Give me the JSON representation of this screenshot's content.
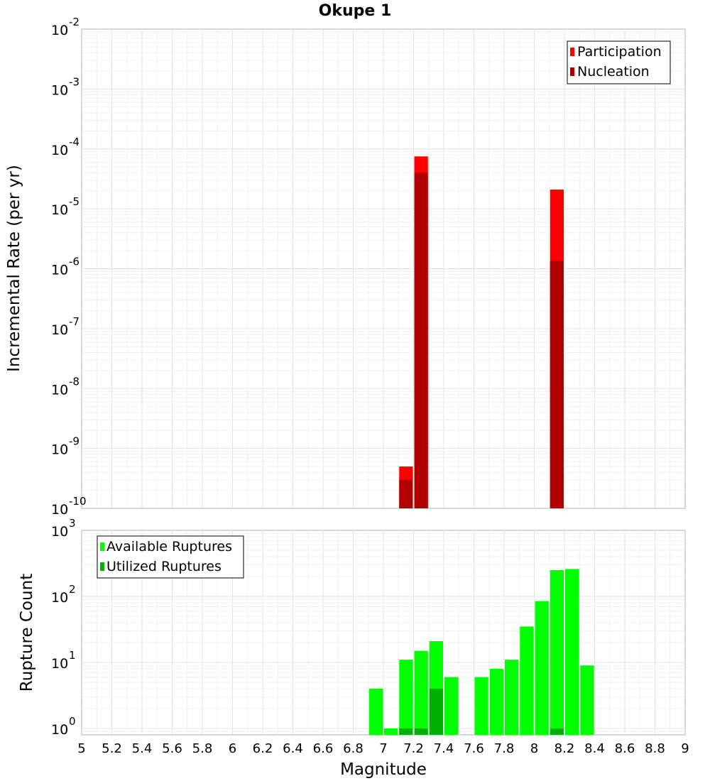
{
  "title": "Okupe 1",
  "chart_data": [
    {
      "type": "bar",
      "panel": "top",
      "title": "Okupe 1",
      "xlabel": "",
      "ylabel": "Incremental Rate (per yr)",
      "yscale": "log",
      "xlim": [
        5,
        9
      ],
      "ylim": [
        1e-10,
        0.01
      ],
      "yticks": [
        {
          "base": "10",
          "exp": "-10"
        },
        {
          "base": "10",
          "exp": "-9"
        },
        {
          "base": "10",
          "exp": "-8"
        },
        {
          "base": "10",
          "exp": "-7"
        },
        {
          "base": "10",
          "exp": "-6"
        },
        {
          "base": "10",
          "exp": "-5"
        },
        {
          "base": "10",
          "exp": "-4"
        },
        {
          "base": "10",
          "exp": "-3"
        },
        {
          "base": "10",
          "exp": "-2"
        }
      ],
      "legend_position": "top-right",
      "grid": true,
      "bin_width": 0.1,
      "series": [
        {
          "name": "Participation",
          "color": "#ff0000",
          "x": [
            7.15,
            7.25,
            8.15
          ],
          "values": [
            5e-10,
            7.5e-05,
            2.1e-05
          ]
        },
        {
          "name": "Nucleation",
          "color": "#b00000",
          "x": [
            7.15,
            7.25,
            8.15
          ],
          "values": [
            3e-10,
            4e-05,
            1.35e-06
          ]
        }
      ]
    },
    {
      "type": "bar",
      "panel": "bottom",
      "xlabel": "Magnitude",
      "ylabel": "Rupture Count",
      "yscale": "log",
      "xlim": [
        5,
        9
      ],
      "ylim": [
        0.8,
        1000
      ],
      "xticks": [
        "5",
        "5.2",
        "5.4",
        "5.6",
        "5.8",
        "6",
        "6.2",
        "6.4",
        "6.6",
        "6.8",
        "7",
        "7.2",
        "7.4",
        "7.6",
        "7.8",
        "8",
        "8.2",
        "8.4",
        "8.6",
        "8.8",
        "9"
      ],
      "yticks": [
        {
          "base": "10",
          "exp": "0"
        },
        {
          "base": "10",
          "exp": "1"
        },
        {
          "base": "10",
          "exp": "2"
        },
        {
          "base": "10",
          "exp": "3"
        }
      ],
      "legend_position": "top-left",
      "grid": true,
      "bin_width": 0.1,
      "series": [
        {
          "name": "Available Ruptures",
          "color": "#00ff00",
          "x": [
            6.95,
            7.05,
            7.15,
            7.25,
            7.35,
            7.45,
            7.65,
            7.75,
            7.85,
            7.95,
            8.05,
            8.15,
            8.25,
            8.35
          ],
          "values": [
            4,
            1,
            11,
            15,
            21,
            6,
            6,
            8,
            11,
            35,
            85,
            250,
            260,
            9
          ]
        },
        {
          "name": "Utilized Ruptures",
          "color": "#00b000",
          "x": [
            7.15,
            7.25,
            7.35,
            8.15
          ],
          "values": [
            1,
            1,
            4,
            1
          ]
        }
      ]
    }
  ]
}
